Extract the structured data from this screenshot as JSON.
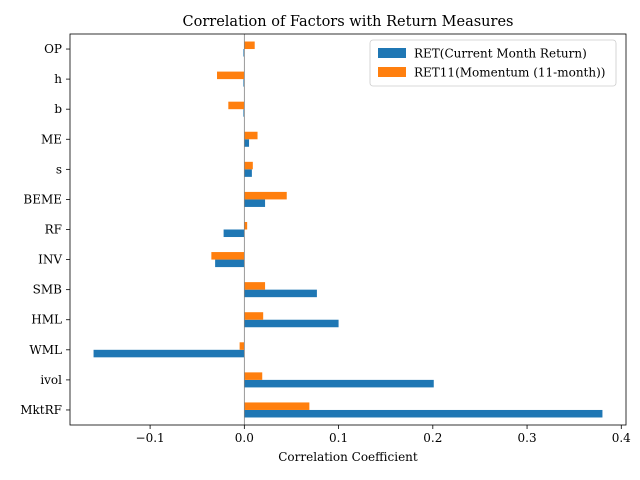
{
  "chart_data": {
    "type": "bar",
    "orientation": "horizontal",
    "title": "Correlation of Factors with Return Measures",
    "xlabel": "Correlation Coefficient",
    "ylabel": "",
    "xlim": [
      -0.185,
      0.405
    ],
    "xticks": [
      -0.1,
      0.0,
      0.1,
      0.2,
      0.3,
      0.4
    ],
    "xtick_labels": [
      "−0.1",
      "0.0",
      "0.1",
      "0.2",
      "0.3",
      "0.4"
    ],
    "categories": [
      "MktRF",
      "ivol",
      "WML",
      "HML",
      "SMB",
      "INV",
      "RF",
      "BEME",
      "s",
      "ME",
      "b",
      "h",
      "OP"
    ],
    "series": [
      {
        "name": "RET(Current Month Return)",
        "color": "#1f77b4",
        "values": [
          0.38,
          0.201,
          -0.16,
          0.1,
          0.077,
          -0.031,
          -0.022,
          0.022,
          0.008,
          0.005,
          -0.001,
          -0.001,
          -0.001
        ]
      },
      {
        "name": "RET11(Momentum (11-month))",
        "color": "#ff7f0e",
        "values": [
          0.069,
          0.019,
          -0.005,
          0.02,
          0.022,
          -0.035,
          0.003,
          0.045,
          0.009,
          0.014,
          -0.017,
          -0.029,
          0.011
        ]
      }
    ],
    "legend_position": "top-right",
    "zero_line": true,
    "grid": false
  }
}
